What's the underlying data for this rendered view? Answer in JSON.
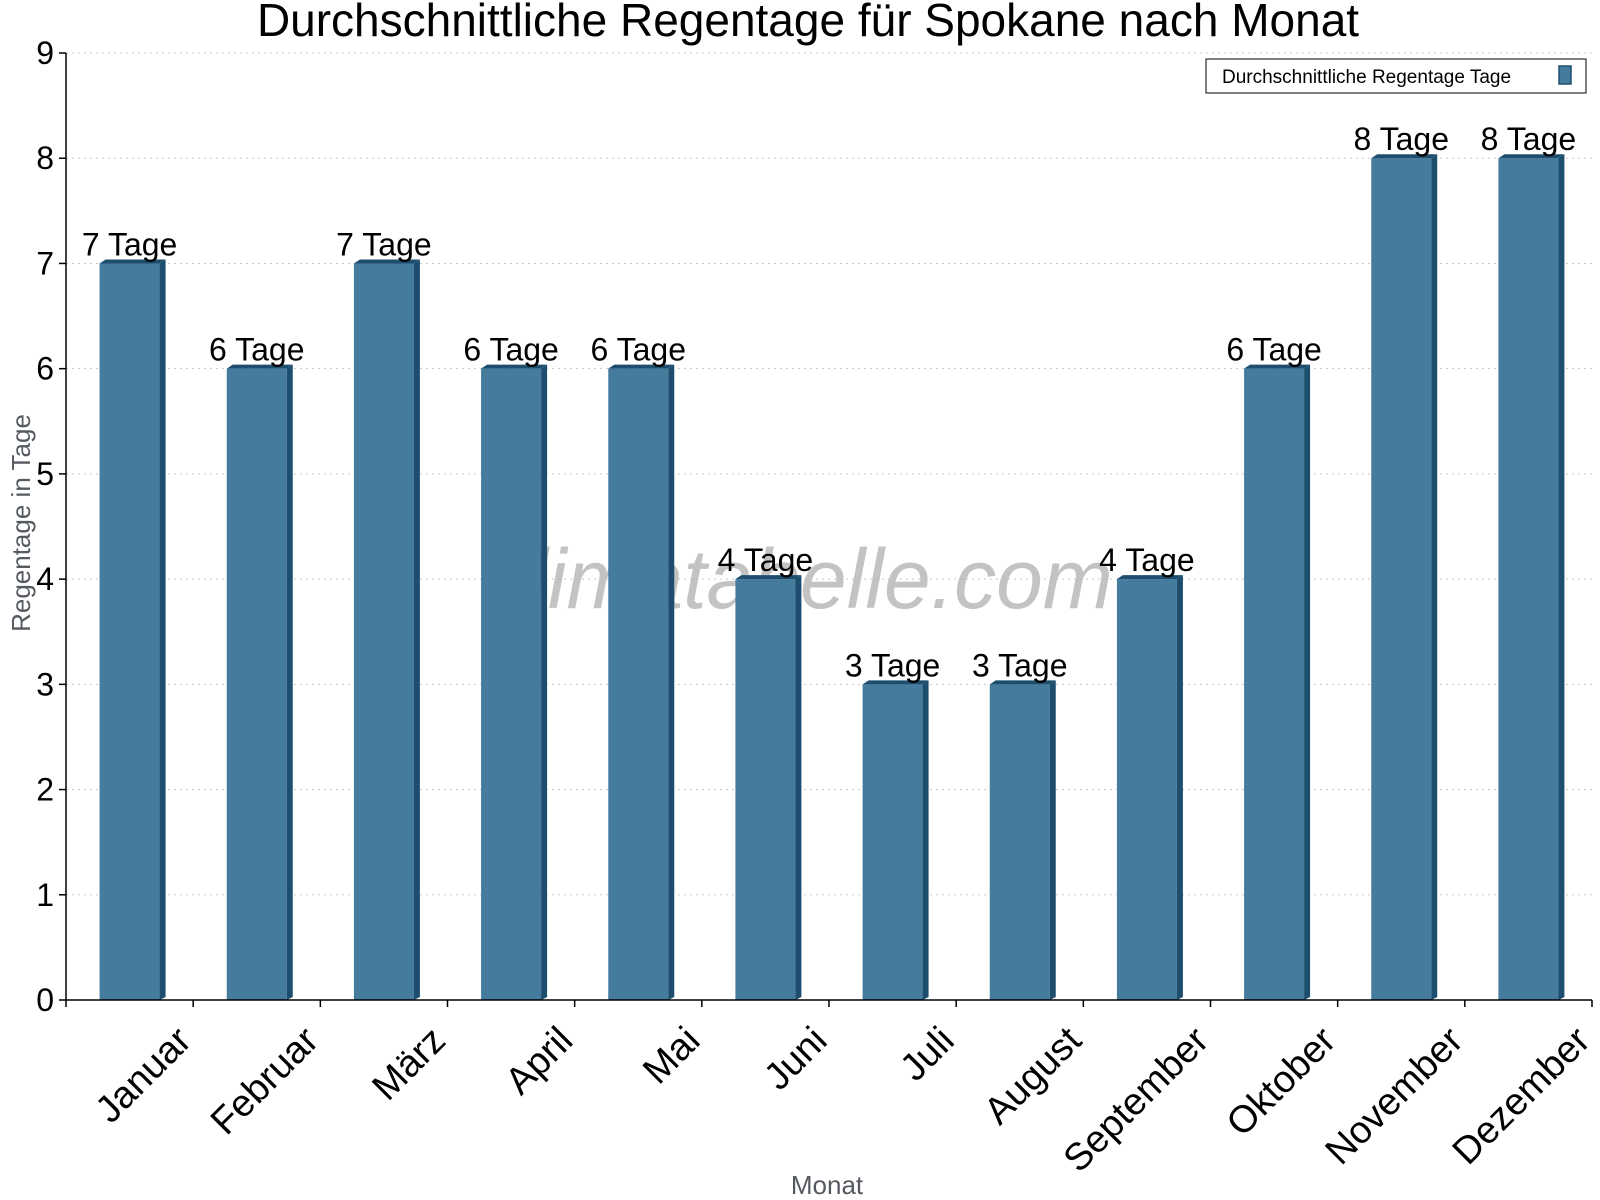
{
  "chart_data": {
    "type": "bar",
    "title": "Durchschnittliche Regentage für Spokane nach Monat",
    "xlabel": "Monat",
    "ylabel": "Regentage in Tage",
    "ylim": [
      0,
      9
    ],
    "yticks": [
      0,
      1,
      2,
      3,
      4,
      5,
      6,
      7,
      8,
      9
    ],
    "grid": true,
    "legend_position": "top-right",
    "categories": [
      "Januar",
      "Februar",
      "März",
      "April",
      "Mai",
      "Juni",
      "Juli",
      "August",
      "September",
      "Oktober",
      "November",
      "Dezember"
    ],
    "series": [
      {
        "name": "Durchschnittliche Regentage Tage",
        "values": [
          7,
          6,
          7,
          6,
          6,
          4,
          3,
          3,
          4,
          6,
          8,
          8
        ],
        "labels": [
          "7 Tage",
          "6 Tage",
          "7 Tage",
          "6 Tage",
          "6 Tage",
          "4 Tage",
          "3 Tage",
          "3 Tage",
          "4 Tage",
          "6 Tage",
          "8 Tage",
          "8 Tage"
        ],
        "color": "#457b9d",
        "edge_color": "#1d4e6e"
      }
    ],
    "watermark": "klimatabelle.com"
  }
}
